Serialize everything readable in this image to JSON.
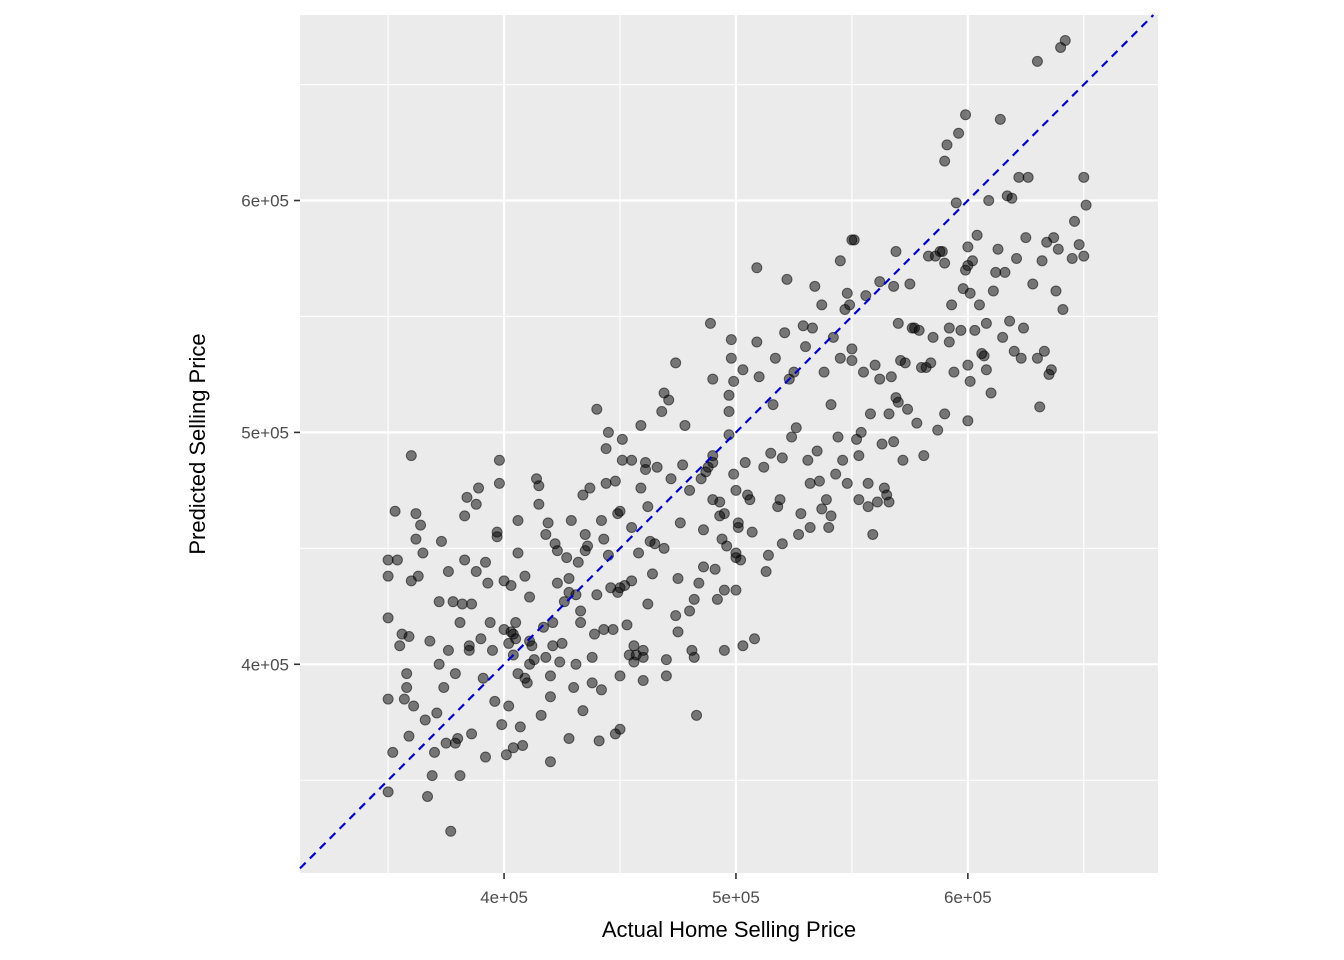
{
  "chart_data": {
    "type": "scatter",
    "xlabel": "Actual Home Selling Price",
    "ylabel": "Predicted Selling Price",
    "xlim": [
      312000,
      682000
    ],
    "ylim": [
      310000,
      680000
    ],
    "x_ticks": [
      400000,
      500000,
      600000
    ],
    "x_tick_labels": [
      "4e+05",
      "5e+05",
      "6e+05"
    ],
    "y_ticks": [
      400000,
      500000,
      600000
    ],
    "y_tick_labels": [
      "4e+05",
      "5e+05",
      "6e+05"
    ],
    "grid": true,
    "background": "#ebebeb",
    "point_color": "#000000",
    "point_opacity": 0.5,
    "reference_line": {
      "slope": 1,
      "intercept": 0,
      "style": "dashed",
      "color": "#0000cc"
    },
    "points": [
      [
        350000,
        345000
      ],
      [
        352000,
        362000
      ],
      [
        350000,
        385000
      ],
      [
        350000,
        420000
      ],
      [
        350000,
        438000
      ],
      [
        350000,
        445000
      ],
      [
        353000,
        466000
      ],
      [
        354000,
        445000
      ],
      [
        355000,
        408000
      ],
      [
        356000,
        413000
      ],
      [
        357000,
        385000
      ],
      [
        358000,
        390000
      ],
      [
        358000,
        396000
      ],
      [
        359000,
        369000
      ],
      [
        359000,
        412000
      ],
      [
        360000,
        436000
      ],
      [
        360000,
        490000
      ],
      [
        361000,
        382000
      ],
      [
        362000,
        454000
      ],
      [
        362000,
        465000
      ],
      [
        363000,
        438000
      ],
      [
        364000,
        460000
      ],
      [
        365000,
        448000
      ],
      [
        366000,
        376000
      ],
      [
        367000,
        343000
      ],
      [
        368000,
        410000
      ],
      [
        369000,
        352000
      ],
      [
        370000,
        362000
      ],
      [
        371000,
        379000
      ],
      [
        372000,
        400000
      ],
      [
        372000,
        427000
      ],
      [
        373000,
        453000
      ],
      [
        374000,
        390000
      ],
      [
        375000,
        366000
      ],
      [
        376000,
        440000
      ],
      [
        376000,
        406000
      ],
      [
        377000,
        328000
      ],
      [
        378000,
        427000
      ],
      [
        379000,
        366000
      ],
      [
        379000,
        396000
      ],
      [
        380000,
        368000
      ],
      [
        381000,
        352000
      ],
      [
        381000,
        418000
      ],
      [
        382000,
        426000
      ],
      [
        383000,
        445000
      ],
      [
        383000,
        464000
      ],
      [
        384000,
        472000
      ],
      [
        385000,
        406000
      ],
      [
        385000,
        408000
      ],
      [
        386000,
        370000
      ],
      [
        386000,
        426000
      ],
      [
        388000,
        440000
      ],
      [
        388000,
        469000
      ],
      [
        389000,
        476000
      ],
      [
        390000,
        411000
      ],
      [
        391000,
        394000
      ],
      [
        392000,
        360000
      ],
      [
        392000,
        444000
      ],
      [
        393000,
        435000
      ],
      [
        394000,
        418000
      ],
      [
        395000,
        406000
      ],
      [
        396000,
        384000
      ],
      [
        397000,
        455000
      ],
      [
        397000,
        457000
      ],
      [
        398000,
        478000
      ],
      [
        398000,
        488000
      ],
      [
        399000,
        374000
      ],
      [
        400000,
        415000
      ],
      [
        400000,
        436000
      ],
      [
        401000,
        361000
      ],
      [
        402000,
        382000
      ],
      [
        402000,
        409000
      ],
      [
        403000,
        414000
      ],
      [
        403000,
        434000
      ],
      [
        404000,
        364000
      ],
      [
        404000,
        404000
      ],
      [
        404000,
        413000
      ],
      [
        405000,
        411000
      ],
      [
        405000,
        418000
      ],
      [
        406000,
        396000
      ],
      [
        406000,
        448000
      ],
      [
        406000,
        462000
      ],
      [
        407000,
        373000
      ],
      [
        408000,
        365000
      ],
      [
        409000,
        394000
      ],
      [
        409000,
        438000
      ],
      [
        410000,
        392000
      ],
      [
        411000,
        400000
      ],
      [
        411000,
        410000
      ],
      [
        411000,
        429000
      ],
      [
        412000,
        408000
      ],
      [
        413000,
        402000
      ],
      [
        414000,
        480000
      ],
      [
        415000,
        469000
      ],
      [
        415000,
        477000
      ],
      [
        416000,
        378000
      ],
      [
        417000,
        416000
      ],
      [
        418000,
        403000
      ],
      [
        418000,
        456000
      ],
      [
        419000,
        461000
      ],
      [
        420000,
        358000
      ],
      [
        420000,
        386000
      ],
      [
        420000,
        395000
      ],
      [
        421000,
        408000
      ],
      [
        421000,
        418000
      ],
      [
        422000,
        452000
      ],
      [
        423000,
        435000
      ],
      [
        423000,
        449000
      ],
      [
        424000,
        401000
      ],
      [
        425000,
        409000
      ],
      [
        426000,
        427000
      ],
      [
        427000,
        446000
      ],
      [
        428000,
        368000
      ],
      [
        428000,
        431000
      ],
      [
        428000,
        437000
      ],
      [
        429000,
        462000
      ],
      [
        430000,
        390000
      ],
      [
        431000,
        400000
      ],
      [
        431000,
        430000
      ],
      [
        432000,
        444000
      ],
      [
        433000,
        418000
      ],
      [
        433000,
        423000
      ],
      [
        434000,
        380000
      ],
      [
        434000,
        473000
      ],
      [
        435000,
        449000
      ],
      [
        435000,
        456000
      ],
      [
        436000,
        451000
      ],
      [
        437000,
        476000
      ],
      [
        438000,
        392000
      ],
      [
        438000,
        403000
      ],
      [
        439000,
        413000
      ],
      [
        440000,
        510000
      ],
      [
        440000,
        430000
      ],
      [
        441000,
        367000
      ],
      [
        442000,
        389000
      ],
      [
        442000,
        462000
      ],
      [
        443000,
        415000
      ],
      [
        443000,
        454000
      ],
      [
        444000,
        493000
      ],
      [
        444000,
        478000
      ],
      [
        445000,
        500000
      ],
      [
        445000,
        447000
      ],
      [
        446000,
        433000
      ],
      [
        447000,
        415000
      ],
      [
        448000,
        370000
      ],
      [
        448000,
        479000
      ],
      [
        449000,
        431000
      ],
      [
        449000,
        465000
      ],
      [
        450000,
        433000
      ],
      [
        450000,
        395000
      ],
      [
        450000,
        466000
      ],
      [
        450000,
        372000
      ],
      [
        451000,
        497000
      ],
      [
        451000,
        488000
      ],
      [
        452000,
        434000
      ],
      [
        453000,
        417000
      ],
      [
        454000,
        404000
      ],
      [
        455000,
        488000
      ],
      [
        455000,
        436000
      ],
      [
        455000,
        459000
      ],
      [
        456000,
        401000
      ],
      [
        456000,
        408000
      ],
      [
        457000,
        404000
      ],
      [
        458000,
        448000
      ],
      [
        459000,
        476000
      ],
      [
        459000,
        503000
      ],
      [
        460000,
        393000
      ],
      [
        460000,
        403000
      ],
      [
        460000,
        406000
      ],
      [
        461000,
        487000
      ],
      [
        461000,
        484000
      ],
      [
        462000,
        468000
      ],
      [
        462000,
        426000
      ],
      [
        463000,
        453000
      ],
      [
        464000,
        439000
      ],
      [
        465000,
        452000
      ],
      [
        466000,
        485000
      ],
      [
        468000,
        509000
      ],
      [
        469000,
        517000
      ],
      [
        469000,
        450000
      ],
      [
        470000,
        395000
      ],
      [
        470000,
        402000
      ],
      [
        471000,
        514000
      ],
      [
        472000,
        480000
      ],
      [
        474000,
        421000
      ],
      [
        474000,
        530000
      ],
      [
        475000,
        414000
      ],
      [
        475000,
        437000
      ],
      [
        476000,
        461000
      ],
      [
        477000,
        486000
      ],
      [
        478000,
        503000
      ],
      [
        480000,
        475000
      ],
      [
        480000,
        423000
      ],
      [
        481000,
        406000
      ],
      [
        482000,
        403000
      ],
      [
        482000,
        428000
      ],
      [
        483000,
        378000
      ],
      [
        484000,
        435000
      ],
      [
        485000,
        480000
      ],
      [
        486000,
        442000
      ],
      [
        486000,
        458000
      ],
      [
        487000,
        483000
      ],
      [
        488000,
        485000
      ],
      [
        489000,
        547000
      ],
      [
        490000,
        487000
      ],
      [
        490000,
        471000
      ],
      [
        490000,
        490000
      ],
      [
        490000,
        523000
      ],
      [
        491000,
        441000
      ],
      [
        492000,
        428000
      ],
      [
        493000,
        464000
      ],
      [
        493000,
        470000
      ],
      [
        494000,
        454000
      ],
      [
        495000,
        406000
      ],
      [
        495000,
        465000
      ],
      [
        495000,
        432000
      ],
      [
        496000,
        451000
      ],
      [
        497000,
        516000
      ],
      [
        497000,
        499000
      ],
      [
        497000,
        509000
      ],
      [
        498000,
        540000
      ],
      [
        498000,
        532000
      ],
      [
        499000,
        522000
      ],
      [
        499000,
        482000
      ],
      [
        500000,
        475000
      ],
      [
        500000,
        448000
      ],
      [
        500000,
        446000
      ],
      [
        500000,
        432000
      ],
      [
        501000,
        461000
      ],
      [
        501000,
        459000
      ],
      [
        502000,
        445000
      ],
      [
        503000,
        408000
      ],
      [
        503000,
        527000
      ],
      [
        504000,
        487000
      ],
      [
        505000,
        473000
      ],
      [
        506000,
        471000
      ],
      [
        507000,
        457000
      ],
      [
        508000,
        411000
      ],
      [
        509000,
        571000
      ],
      [
        509000,
        539000
      ],
      [
        510000,
        524000
      ],
      [
        512000,
        485000
      ],
      [
        513000,
        440000
      ],
      [
        514000,
        447000
      ],
      [
        515000,
        491000
      ],
      [
        516000,
        512000
      ],
      [
        517000,
        532000
      ],
      [
        518000,
        468000
      ],
      [
        519000,
        471000
      ],
      [
        520000,
        452000
      ],
      [
        520000,
        489000
      ],
      [
        521000,
        543000
      ],
      [
        522000,
        566000
      ],
      [
        523000,
        523000
      ],
      [
        524000,
        498000
      ],
      [
        525000,
        526000
      ],
      [
        526000,
        502000
      ],
      [
        527000,
        456000
      ],
      [
        528000,
        465000
      ],
      [
        529000,
        546000
      ],
      [
        530000,
        537000
      ],
      [
        531000,
        488000
      ],
      [
        532000,
        459000
      ],
      [
        532000,
        478000
      ],
      [
        533000,
        545000
      ],
      [
        534000,
        563000
      ],
      [
        535000,
        492000
      ],
      [
        536000,
        479000
      ],
      [
        537000,
        467000
      ],
      [
        537000,
        555000
      ],
      [
        538000,
        526000
      ],
      [
        539000,
        471000
      ],
      [
        540000,
        459000
      ],
      [
        541000,
        464000
      ],
      [
        541000,
        512000
      ],
      [
        542000,
        541000
      ],
      [
        543000,
        482000
      ],
      [
        544000,
        498000
      ],
      [
        545000,
        574000
      ],
      [
        545000,
        532000
      ],
      [
        546000,
        488000
      ],
      [
        547000,
        553000
      ],
      [
        548000,
        560000
      ],
      [
        548000,
        478000
      ],
      [
        549000,
        555000
      ],
      [
        550000,
        531000
      ],
      [
        550000,
        536000
      ],
      [
        550000,
        583000
      ],
      [
        551000,
        583000
      ],
      [
        552000,
        497000
      ],
      [
        553000,
        471000
      ],
      [
        553000,
        490000
      ],
      [
        554000,
        500000
      ],
      [
        555000,
        526000
      ],
      [
        556000,
        559000
      ],
      [
        557000,
        468000
      ],
      [
        557000,
        478000
      ],
      [
        558000,
        508000
      ],
      [
        559000,
        456000
      ],
      [
        560000,
        529000
      ],
      [
        561000,
        470000
      ],
      [
        562000,
        565000
      ],
      [
        562000,
        523000
      ],
      [
        563000,
        495000
      ],
      [
        564000,
        476000
      ],
      [
        565000,
        473000
      ],
      [
        566000,
        470000
      ],
      [
        566000,
        508000
      ],
      [
        567000,
        524000
      ],
      [
        568000,
        496000
      ],
      [
        568000,
        563000
      ],
      [
        569000,
        515000
      ],
      [
        569000,
        578000
      ],
      [
        570000,
        547000
      ],
      [
        570000,
        513000
      ],
      [
        571000,
        531000
      ],
      [
        572000,
        488000
      ],
      [
        573000,
        530000
      ],
      [
        574000,
        510000
      ],
      [
        575000,
        564000
      ],
      [
        576000,
        545000
      ],
      [
        577000,
        545000
      ],
      [
        578000,
        504000
      ],
      [
        579000,
        544000
      ],
      [
        580000,
        528000
      ],
      [
        581000,
        490000
      ],
      [
        582000,
        528000
      ],
      [
        583000,
        576000
      ],
      [
        584000,
        530000
      ],
      [
        585000,
        541000
      ],
      [
        586000,
        576000
      ],
      [
        587000,
        501000
      ],
      [
        588000,
        578000
      ],
      [
        589000,
        578000
      ],
      [
        590000,
        573000
      ],
      [
        590000,
        508000
      ],
      [
        590000,
        617000
      ],
      [
        591000,
        624000
      ],
      [
        592000,
        545000
      ],
      [
        592000,
        539000
      ],
      [
        593000,
        555000
      ],
      [
        594000,
        526000
      ],
      [
        595000,
        599000
      ],
      [
        596000,
        629000
      ],
      [
        597000,
        544000
      ],
      [
        598000,
        562000
      ],
      [
        599000,
        637000
      ],
      [
        599000,
        570000
      ],
      [
        600000,
        572000
      ],
      [
        600000,
        529000
      ],
      [
        600000,
        505000
      ],
      [
        600000,
        580000
      ],
      [
        601000,
        522000
      ],
      [
        601000,
        560000
      ],
      [
        602000,
        574000
      ],
      [
        603000,
        544000
      ],
      [
        604000,
        585000
      ],
      [
        605000,
        555000
      ],
      [
        606000,
        534000
      ],
      [
        607000,
        533000
      ],
      [
        608000,
        547000
      ],
      [
        608000,
        527000
      ],
      [
        609000,
        600000
      ],
      [
        610000,
        517000
      ],
      [
        611000,
        561000
      ],
      [
        612000,
        569000
      ],
      [
        613000,
        579000
      ],
      [
        614000,
        635000
      ],
      [
        615000,
        541000
      ],
      [
        616000,
        569000
      ],
      [
        617000,
        602000
      ],
      [
        618000,
        548000
      ],
      [
        619000,
        601000
      ],
      [
        620000,
        535000
      ],
      [
        621000,
        575000
      ],
      [
        622000,
        610000
      ],
      [
        623000,
        532000
      ],
      [
        624000,
        545000
      ],
      [
        625000,
        584000
      ],
      [
        626000,
        610000
      ],
      [
        628000,
        564000
      ],
      [
        630000,
        660000
      ],
      [
        630000,
        532000
      ],
      [
        631000,
        511000
      ],
      [
        632000,
        574000
      ],
      [
        633000,
        535000
      ],
      [
        634000,
        582000
      ],
      [
        635000,
        525000
      ],
      [
        636000,
        527000
      ],
      [
        637000,
        584000
      ],
      [
        638000,
        561000
      ],
      [
        639000,
        579000
      ],
      [
        640000,
        666000
      ],
      [
        641000,
        553000
      ],
      [
        642000,
        669000
      ],
      [
        645000,
        575000
      ],
      [
        646000,
        591000
      ],
      [
        648000,
        581000
      ],
      [
        650000,
        610000
      ],
      [
        650000,
        576000
      ],
      [
        651000,
        598000
      ]
    ]
  }
}
